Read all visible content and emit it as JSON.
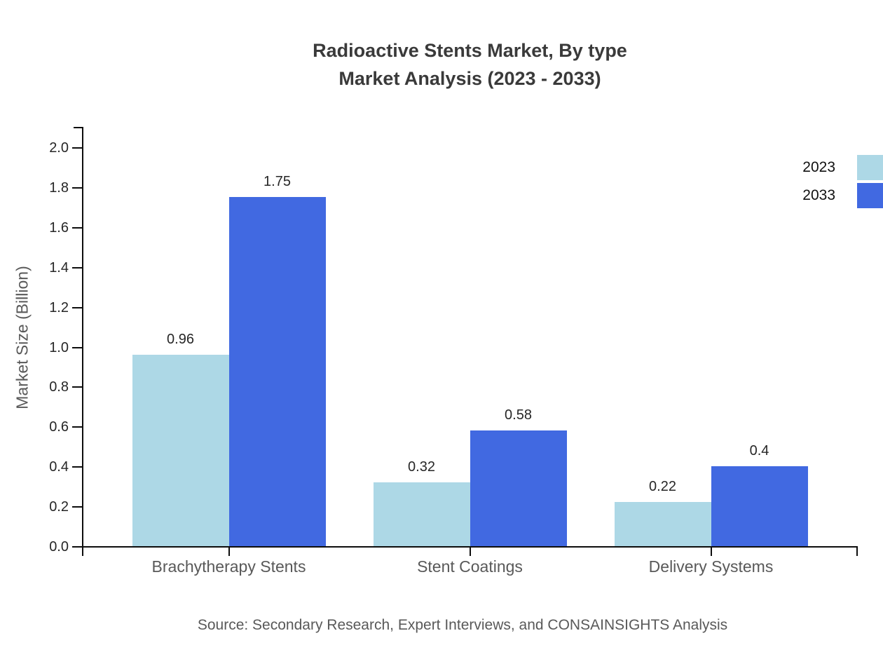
{
  "header": {
    "title_line1": "Radioactive Stents Market, By type",
    "title_line2": "Market Analysis (2023 - 2033)"
  },
  "footer": {
    "source": "Source: Secondary Research, Expert Interviews, and CONSAINSIGHTS Analysis"
  },
  "colors": {
    "series_2023": "#ADD8E6",
    "series_2033": "#4169E1",
    "axis": "#0d0d0d",
    "title_text": "#3a3a3a",
    "muted_text": "#595959",
    "tick_text": "#262626"
  },
  "chart_data": {
    "type": "bar",
    "title": "Radioactive Stents Market, By type Market Analysis (2023 - 2033)",
    "categories": [
      "Brachytherapy Stents",
      "Stent Coatings",
      "Delivery Systems"
    ],
    "series": [
      {
        "name": "2023",
        "color": "#ADD8E6",
        "values": [
          0.96,
          0.32,
          0.22
        ],
        "labels": [
          "0.96",
          "0.32",
          "0.22"
        ]
      },
      {
        "name": "2033",
        "color": "#4169E1",
        "values": [
          1.75,
          0.58,
          0.4
        ],
        "labels": [
          "1.75",
          "0.58",
          "0.4"
        ]
      }
    ],
    "xlabel": "",
    "ylabel": "Market Size (Billion)",
    "ylim": [
      0.0,
      2.0
    ],
    "ytick_step": 0.2,
    "yticks": [
      "0.0",
      "0.2",
      "0.4",
      "0.6",
      "0.8",
      "1.0",
      "1.2",
      "1.4",
      "1.6",
      "1.8",
      "2.0"
    ],
    "grid": false,
    "legend_position": "top-right"
  }
}
